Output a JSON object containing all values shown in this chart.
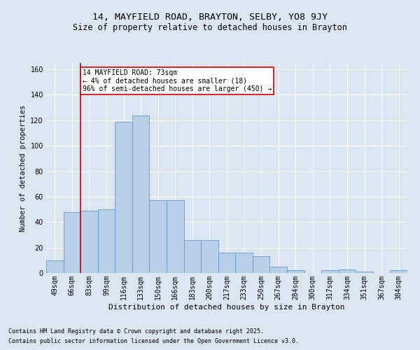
{
  "title1": "14, MAYFIELD ROAD, BRAYTON, SELBY, YO8 9JY",
  "title2": "Size of property relative to detached houses in Brayton",
  "xlabel": "Distribution of detached houses by size in Brayton",
  "ylabel": "Number of detached properties",
  "categories": [
    "49sqm",
    "66sqm",
    "83sqm",
    "99sqm",
    "116sqm",
    "133sqm",
    "150sqm",
    "166sqm",
    "183sqm",
    "200sqm",
    "217sqm",
    "233sqm",
    "250sqm",
    "267sqm",
    "284sqm",
    "300sqm",
    "317sqm",
    "334sqm",
    "351sqm",
    "367sqm",
    "384sqm"
  ],
  "values": [
    10,
    48,
    49,
    50,
    119,
    124,
    57,
    57,
    26,
    26,
    16,
    16,
    13,
    5,
    2,
    0,
    2,
    3,
    1,
    0,
    2
  ],
  "bar_color": "#b8cfe8",
  "bar_edge_color": "#6699cc",
  "background_color": "#dce6f0",
  "grid_color": "#ffffff",
  "vline_color": "#cc0000",
  "vline_x": 1.5,
  "annotation_text": "14 MAYFIELD ROAD: 73sqm\n← 4% of detached houses are smaller (18)\n96% of semi-detached houses are larger (450) →",
  "annotation_box_facecolor": "#ffffff",
  "annotation_box_edge": "#cc0000",
  "footnote1": "Contains HM Land Registry data © Crown copyright and database right 2025.",
  "footnote2": "Contains public sector information licensed under the Open Government Licence v3.0.",
  "ylim": [
    0,
    165
  ],
  "yticks": [
    0,
    20,
    40,
    60,
    80,
    100,
    120,
    140,
    160
  ],
  "title1_fontsize": 9.5,
  "title2_fontsize": 8.5,
  "tick_fontsize": 7,
  "ylabel_fontsize": 7.5,
  "xlabel_fontsize": 8
}
